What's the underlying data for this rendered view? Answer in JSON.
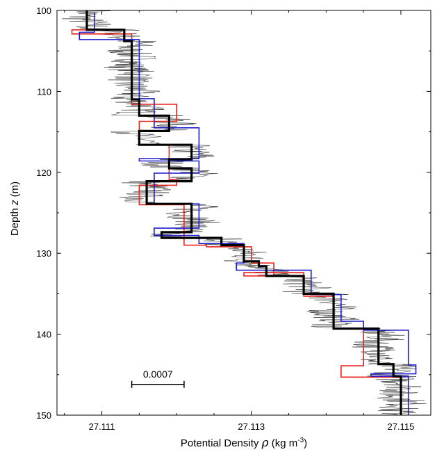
{
  "chart_data": {
    "type": "line",
    "orientation": "vertical-profile",
    "xlabel": {
      "prefix": "Potential Density ",
      "symbol": "ρ",
      "units_pre": " (kg m",
      "units_sup": "-3",
      "units_post": ")"
    },
    "ylabel": {
      "prefix": "Depth  ",
      "symbol": "z",
      "units": " (m)"
    },
    "xlim": [
      27.1104,
      27.1154
    ],
    "ylim": [
      150,
      100
    ],
    "y_inverted": true,
    "grid": false,
    "x_ticks": [
      27.111,
      27.113,
      27.115
    ],
    "x_tick_labels": [
      "27.111",
      "27.113",
      "27.115"
    ],
    "x_minor_step": 0.0005,
    "y_ticks": [
      100,
      110,
      120,
      130,
      140,
      150
    ],
    "y_tick_labels": [
      "100",
      "110",
      "120",
      "130",
      "140",
      "150"
    ],
    "y_minor_step": 5,
    "scale_bar": {
      "label": "0.0007",
      "x_start": 27.1114,
      "length": 0.0007,
      "depth": 146.2
    },
    "colors": {
      "raw": "#000000",
      "red": "#e8231a",
      "blue": "#1c1ccf",
      "black": "#000000"
    },
    "series": [
      {
        "style": "step-profile-red",
        "points": [
          [
            27.1108,
            100.3
          ],
          [
            27.1108,
            102.4
          ],
          [
            27.1106,
            102.4
          ],
          [
            27.1106,
            102.9
          ],
          [
            27.1114,
            102.9
          ],
          [
            27.1114,
            111.0
          ],
          [
            27.1114,
            111.0
          ],
          [
            27.1114,
            111.6
          ],
          [
            27.112,
            111.6
          ],
          [
            27.112,
            113.7
          ],
          [
            27.1115,
            113.7
          ],
          [
            27.1115,
            116.6
          ],
          [
            27.1119,
            116.6
          ],
          [
            27.1119,
            120.9
          ],
          [
            27.112,
            120.9
          ],
          [
            27.112,
            121.6
          ],
          [
            27.1115,
            121.6
          ],
          [
            27.1115,
            124.0
          ],
          [
            27.1121,
            124.0
          ],
          [
            27.1121,
            129.0
          ],
          [
            27.1124,
            129.0
          ],
          [
            27.1124,
            129.2
          ],
          [
            27.113,
            129.2
          ],
          [
            27.113,
            131.2
          ],
          [
            27.1133,
            131.2
          ],
          [
            27.1133,
            132.8
          ],
          [
            27.1129,
            132.8
          ],
          [
            27.1129,
            132.4
          ],
          [
            27.1137,
            132.4
          ],
          [
            27.1137,
            135.3
          ],
          [
            27.1141,
            135.3
          ],
          [
            27.1141,
            139.3
          ],
          [
            27.1145,
            139.3
          ],
          [
            27.1145,
            143.9
          ],
          [
            27.1142,
            143.9
          ],
          [
            27.1142,
            145.3
          ],
          [
            27.115,
            145.3
          ],
          [
            27.115,
            150.0
          ]
        ]
      },
      {
        "style": "step-profile-blue",
        "points": [
          [
            27.1109,
            100.3
          ],
          [
            27.1109,
            102.7
          ],
          [
            27.1107,
            102.7
          ],
          [
            27.1107,
            103.6
          ],
          [
            27.1115,
            103.6
          ],
          [
            27.1115,
            110.6
          ],
          [
            27.1115,
            110.6
          ],
          [
            27.1115,
            110.9
          ],
          [
            27.1117,
            110.9
          ],
          [
            27.1117,
            114.5
          ],
          [
            27.1123,
            114.5
          ],
          [
            27.1123,
            118.3
          ],
          [
            27.1115,
            118.3
          ],
          [
            27.1115,
            118.6
          ],
          [
            27.1123,
            118.6
          ],
          [
            27.1123,
            120.1
          ],
          [
            27.1117,
            120.1
          ],
          [
            27.1117,
            123.9
          ],
          [
            27.1123,
            123.9
          ],
          [
            27.1123,
            126.9
          ],
          [
            27.1117,
            126.9
          ],
          [
            27.1117,
            127.8
          ],
          [
            27.1123,
            127.8
          ],
          [
            27.1123,
            128.8
          ],
          [
            27.1129,
            128.8
          ],
          [
            27.1129,
            131.2
          ],
          [
            27.1128,
            131.2
          ],
          [
            27.1128,
            132.1
          ],
          [
            27.1138,
            132.1
          ],
          [
            27.1138,
            135.1
          ],
          [
            27.1142,
            135.1
          ],
          [
            27.1142,
            138.4
          ],
          [
            27.1145,
            138.4
          ],
          [
            27.1145,
            139.5
          ],
          [
            27.1151,
            139.5
          ],
          [
            27.1151,
            143.8
          ],
          [
            27.1152,
            143.8
          ],
          [
            27.1152,
            144.9
          ],
          [
            27.1146,
            144.9
          ],
          [
            27.1146,
            145.2
          ],
          [
            27.1151,
            145.2
          ],
          [
            27.1151,
            150.0
          ]
        ]
      },
      {
        "style": "step-profile-black",
        "points": [
          [
            27.1108,
            100.0
          ],
          [
            27.1108,
            102.4
          ],
          [
            27.1113,
            102.4
          ],
          [
            27.1113,
            103.8
          ],
          [
            27.1114,
            103.8
          ],
          [
            27.1114,
            111.0
          ],
          [
            27.1115,
            111.0
          ],
          [
            27.1115,
            113.0
          ],
          [
            27.1119,
            113.0
          ],
          [
            27.1119,
            114.9
          ],
          [
            27.1115,
            114.9
          ],
          [
            27.1115,
            116.6
          ],
          [
            27.1122,
            116.6
          ],
          [
            27.1122,
            118.4
          ],
          [
            27.1119,
            118.4
          ],
          [
            27.1119,
            119.5
          ],
          [
            27.1122,
            119.5
          ],
          [
            27.1122,
            121.1
          ],
          [
            27.1116,
            121.1
          ],
          [
            27.1116,
            123.9
          ],
          [
            27.1122,
            123.9
          ],
          [
            27.1122,
            127.4
          ],
          [
            27.1118,
            127.4
          ],
          [
            27.1118,
            128.1
          ],
          [
            27.1126,
            128.1
          ],
          [
            27.1126,
            129.0
          ],
          [
            27.1129,
            129.0
          ],
          [
            27.1129,
            131.0
          ],
          [
            27.1131,
            131.0
          ],
          [
            27.1131,
            131.6
          ],
          [
            27.1132,
            131.6
          ],
          [
            27.1132,
            132.8
          ],
          [
            27.1137,
            132.8
          ],
          [
            27.1137,
            135.0
          ],
          [
            27.1141,
            135.0
          ],
          [
            27.1141,
            139.3
          ],
          [
            27.1147,
            139.3
          ],
          [
            27.1147,
            143.7
          ],
          [
            27.1149,
            143.7
          ],
          [
            27.1149,
            145.2
          ],
          [
            27.115,
            145.2
          ],
          [
            27.115,
            150.0
          ]
        ]
      }
    ]
  }
}
